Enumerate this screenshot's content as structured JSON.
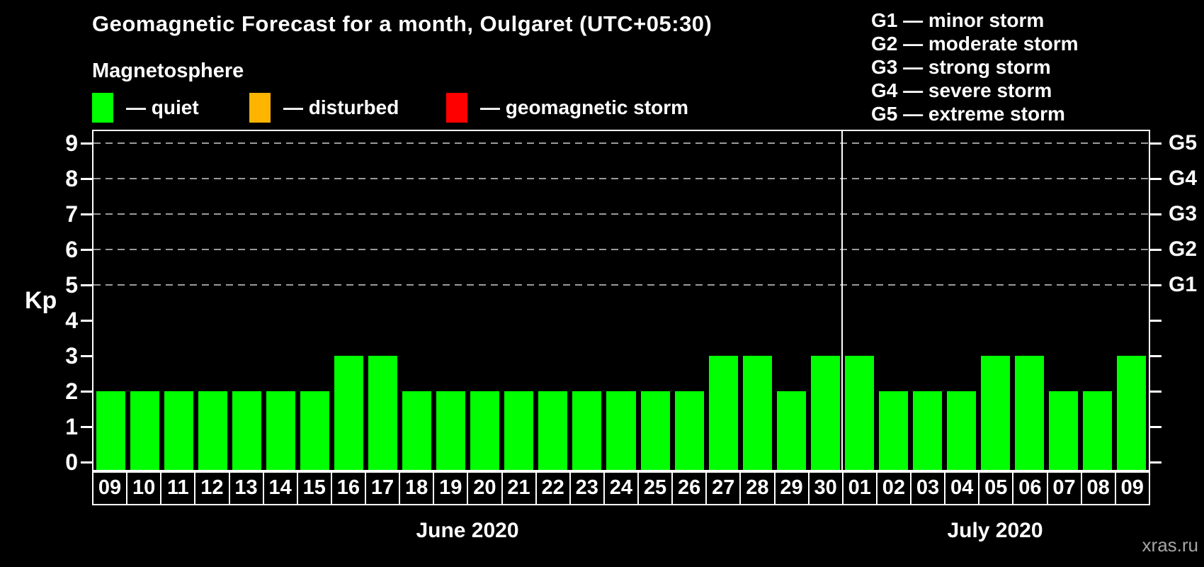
{
  "title": "Geomagnetic Forecast for a month, Oulgaret (UTC+05:30)",
  "legend": {
    "title": "Magnetosphere",
    "items": [
      {
        "level": "quiet",
        "label": "— quiet",
        "color": "#00ff00"
      },
      {
        "level": "disturbed",
        "label": "— disturbed",
        "color": "#ffb400"
      },
      {
        "level": "storm",
        "label": "— geomagnetic storm",
        "color": "#ff0000"
      }
    ]
  },
  "g_scale_legend": [
    "G1 — minor storm",
    "G2 — moderate storm",
    "G3 — strong storm",
    "G4 — severe storm",
    "G5 — extreme storm"
  ],
  "watermark": "xras.ru",
  "chart_data": {
    "type": "bar",
    "title": "Geomagnetic Forecast for a month, Oulgaret (UTC+05:30)",
    "ylabel": "Kp",
    "ylim": [
      0,
      9
    ],
    "y_ticks": [
      0,
      1,
      2,
      3,
      4,
      5,
      6,
      7,
      8,
      9
    ],
    "gridlines_at_kp": [
      5,
      6,
      7,
      8,
      9
    ],
    "grid": "dashed horizontal lines at storm levels only",
    "legend_position": "top",
    "right_axis_labels": [
      {
        "kp": 5,
        "label": "G1"
      },
      {
        "kp": 6,
        "label": "G2"
      },
      {
        "kp": 7,
        "label": "G3"
      },
      {
        "kp": 8,
        "label": "G4"
      },
      {
        "kp": 9,
        "label": "G5"
      }
    ],
    "categories": [
      "09",
      "10",
      "11",
      "12",
      "13",
      "14",
      "15",
      "16",
      "17",
      "18",
      "19",
      "20",
      "21",
      "22",
      "23",
      "24",
      "25",
      "26",
      "27",
      "28",
      "29",
      "30",
      "01",
      "02",
      "03",
      "04",
      "05",
      "06",
      "07",
      "08",
      "09"
    ],
    "values": [
      2,
      2,
      2,
      2,
      2,
      2,
      2,
      3,
      3,
      2,
      2,
      2,
      2,
      2,
      2,
      2,
      2,
      2,
      3,
      3,
      2,
      3,
      3,
      2,
      2,
      2,
      3,
      3,
      2,
      2,
      3
    ],
    "bar_color": "#00ff00",
    "bar_level": "quiet",
    "months": [
      {
        "label": "June 2020",
        "start_index": 0,
        "end_index": 21
      },
      {
        "label": "July 2020",
        "start_index": 22,
        "end_index": 30
      }
    ]
  }
}
